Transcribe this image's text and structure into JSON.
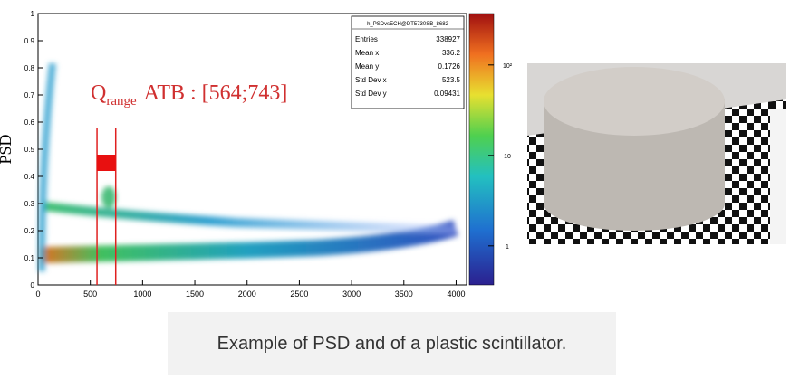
{
  "chart_data": {
    "type": "heatmap",
    "ylabel": "PSD",
    "xlim": [
      0,
      4100
    ],
    "ylim": [
      0,
      1
    ],
    "xticks": [
      0,
      500,
      1000,
      1500,
      2000,
      2500,
      3000,
      3500,
      4000
    ],
    "yticks": [
      0,
      0.1,
      0.2,
      0.3,
      0.4,
      0.5,
      0.6,
      0.7,
      0.8,
      0.9,
      1
    ],
    "log_color_scale": true,
    "zlim": [
      0.37,
      370
    ],
    "zticks": [
      1,
      10,
      {
        "value": 100,
        "label": "10²"
      }
    ],
    "range": [
      564,
      743
    ],
    "range_box_y": [
      0.42,
      0.48
    ],
    "annotation": {
      "symbol": "Q",
      "subscript": "range",
      "text": "ATB : [564;743]"
    },
    "stats": {
      "title": "h_PSDvsECH@DT5730SB_8682",
      "rows": [
        [
          "Entries",
          "338927"
        ],
        [
          "Mean x",
          "336.2"
        ],
        [
          "Mean y",
          "0.1726"
        ],
        [
          "Std Dev x",
          "523.5"
        ],
        [
          "Std Dev y",
          "0.09431"
        ]
      ]
    }
  },
  "caption": "Example of PSD and of a plastic scintillator."
}
